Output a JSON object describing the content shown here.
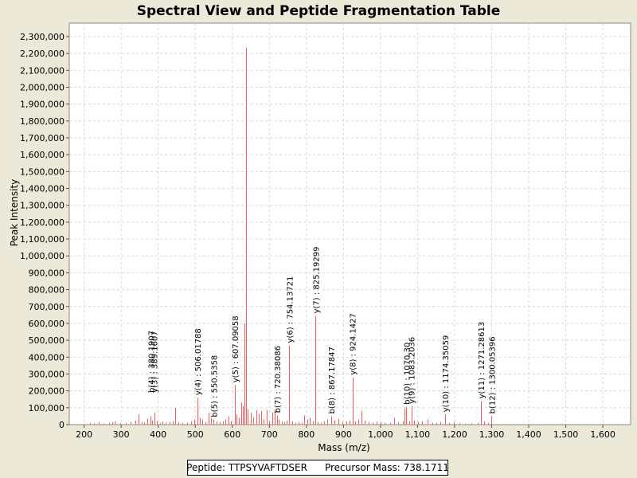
{
  "colors": {
    "background": "#ece9d8",
    "plot_background": "#ffffff",
    "peak": "#ff5a5a",
    "grid": "#d8d8d8"
  },
  "chart_data": {
    "type": "bar",
    "title": "Spectral View and Peptide Fragmentation Table",
    "xlabel": "Mass (m/z)",
    "ylabel": "Peak Intensity",
    "xlim": [
      160,
      1675
    ],
    "ylim": [
      0,
      2380000
    ],
    "x_ticks": [
      200,
      300,
      400,
      500,
      600,
      700,
      800,
      900,
      1000,
      1100,
      1200,
      1300,
      1400,
      1500,
      1600
    ],
    "x_tick_labels": [
      "200",
      "300",
      "400",
      "500",
      "600",
      "700",
      "800",
      "900",
      "1,000",
      "1,100",
      "1,200",
      "1,300",
      "1,400",
      "1,500",
      "1,600"
    ],
    "y_ticks": [
      0,
      100000,
      200000,
      300000,
      400000,
      500000,
      600000,
      700000,
      800000,
      900000,
      1000000,
      1100000,
      1200000,
      1300000,
      1400000,
      1500000,
      1600000,
      1700000,
      1800000,
      1900000,
      2000000,
      2100000,
      2200000,
      2300000
    ],
    "y_tick_labels": [
      "0",
      "100,000",
      "200,000",
      "300,000",
      "400,000",
      "500,000",
      "600,000",
      "700,000",
      "800,000",
      "900,000",
      "1,000,000",
      "1,100,000",
      "1,200,000",
      "1,300,000",
      "1,400,000",
      "1,500,000",
      "1,600,000",
      "1,700,000",
      "1,800,000",
      "1,900,000",
      "2,000,000",
      "2,100,000",
      "2,200,000",
      "2,300,000"
    ],
    "grid": true,
    "annotations": [
      {
        "mz": 380.0,
        "intensity": 175000,
        "label": "b(4) : 380.1907"
      },
      {
        "mz": 389.0,
        "intensity": 175000,
        "label": "y(3) : 389.1607"
      },
      {
        "mz": 506.0,
        "intensity": 160000,
        "label": "y(4) : 506.01788"
      },
      {
        "mz": 550.5,
        "intensity": 30000,
        "label": "b(5) : 550.5358"
      },
      {
        "mz": 607.1,
        "intensity": 235000,
        "label": "y(5) : 607.09058"
      },
      {
        "mz": 720.4,
        "intensity": 55000,
        "label": "b(7) : 720.38086"
      },
      {
        "mz": 754.1,
        "intensity": 470000,
        "label": "y(6) : 754.13721"
      },
      {
        "mz": 825.2,
        "intensity": 645000,
        "label": "y(7) : 825.19299"
      },
      {
        "mz": 867.2,
        "intensity": 50000,
        "label": "b(8) : 867.17847"
      },
      {
        "mz": 924.1,
        "intensity": 280000,
        "label": "y(8) : 924.1427"
      },
      {
        "mz": 1070.3,
        "intensity": 105000,
        "label": "b(10) : 1070.30"
      },
      {
        "mz": 1083.2,
        "intensity": 110000,
        "label": "y(9) : 1083.2036"
      },
      {
        "mz": 1174.4,
        "intensity": 60000,
        "label": "y(10) : 1174.35059"
      },
      {
        "mz": 1271.3,
        "intensity": 140000,
        "label": "y(11) : 1271.28613"
      },
      {
        "mz": 1300.1,
        "intensity": 50000,
        "label": "b(12) : 1300.05396"
      }
    ],
    "peaks": [
      {
        "mz": 216,
        "intensity": 12000
      },
      {
        "mz": 226,
        "intensity": 8000
      },
      {
        "mz": 240,
        "intensity": 15000
      },
      {
        "mz": 252,
        "intensity": 7000
      },
      {
        "mz": 268,
        "intensity": 10000
      },
      {
        "mz": 276,
        "intensity": 14000
      },
      {
        "mz": 283,
        "intensity": 20000
      },
      {
        "mz": 298,
        "intensity": 9000
      },
      {
        "mz": 312,
        "intensity": 11000
      },
      {
        "mz": 325,
        "intensity": 18000
      },
      {
        "mz": 338,
        "intensity": 25000
      },
      {
        "mz": 347,
        "intensity": 60000
      },
      {
        "mz": 356,
        "intensity": 15000
      },
      {
        "mz": 363,
        "intensity": 12000
      },
      {
        "mz": 371,
        "intensity": 35000
      },
      {
        "mz": 380,
        "intensity": 50000
      },
      {
        "mz": 384,
        "intensity": 25000
      },
      {
        "mz": 389,
        "intensity": 70000
      },
      {
        "mz": 397,
        "intensity": 20000
      },
      {
        "mz": 404,
        "intensity": 10000
      },
      {
        "mz": 412,
        "intensity": 18000
      },
      {
        "mz": 420,
        "intensity": 12000
      },
      {
        "mz": 431,
        "intensity": 15000
      },
      {
        "mz": 440,
        "intensity": 22000
      },
      {
        "mz": 446,
        "intensity": 100000
      },
      {
        "mz": 455,
        "intensity": 14000
      },
      {
        "mz": 466,
        "intensity": 9000
      },
      {
        "mz": 479,
        "intensity": 12000
      },
      {
        "mz": 489,
        "intensity": 20000
      },
      {
        "mz": 497,
        "intensity": 30000
      },
      {
        "mz": 506,
        "intensity": 160000
      },
      {
        "mz": 512,
        "intensity": 40000
      },
      {
        "mz": 518,
        "intensity": 30000
      },
      {
        "mz": 527,
        "intensity": 15000
      },
      {
        "mz": 535,
        "intensity": 70000
      },
      {
        "mz": 542,
        "intensity": 40000
      },
      {
        "mz": 550,
        "intensity": 30000
      },
      {
        "mz": 558,
        "intensity": 20000
      },
      {
        "mz": 566,
        "intensity": 15000
      },
      {
        "mz": 574,
        "intensity": 20000
      },
      {
        "mz": 582,
        "intensity": 30000
      },
      {
        "mz": 589,
        "intensity": 50000
      },
      {
        "mz": 596,
        "intensity": 20000
      },
      {
        "mz": 607,
        "intensity": 235000
      },
      {
        "mz": 612,
        "intensity": 60000
      },
      {
        "mz": 618,
        "intensity": 40000
      },
      {
        "mz": 624,
        "intensity": 130000
      },
      {
        "mz": 628,
        "intensity": 110000
      },
      {
        "mz": 632,
        "intensity": 600000
      },
      {
        "mz": 636,
        "intensity": 2235000
      },
      {
        "mz": 642,
        "intensity": 90000
      },
      {
        "mz": 650,
        "intensity": 70000
      },
      {
        "mz": 657,
        "intensity": 45000
      },
      {
        "mz": 664,
        "intensity": 85000
      },
      {
        "mz": 671,
        "intensity": 60000
      },
      {
        "mz": 678,
        "intensity": 80000
      },
      {
        "mz": 685,
        "intensity": 30000
      },
      {
        "mz": 692,
        "intensity": 85000
      },
      {
        "mz": 700,
        "intensity": 20000
      },
      {
        "mz": 707,
        "intensity": 70000
      },
      {
        "mz": 714,
        "intensity": 90000
      },
      {
        "mz": 720,
        "intensity": 55000
      },
      {
        "mz": 726,
        "intensity": 30000
      },
      {
        "mz": 733,
        "intensity": 20000
      },
      {
        "mz": 741,
        "intensity": 15000
      },
      {
        "mz": 747,
        "intensity": 25000
      },
      {
        "mz": 754,
        "intensity": 470000
      },
      {
        "mz": 762,
        "intensity": 20000
      },
      {
        "mz": 770,
        "intensity": 10000
      },
      {
        "mz": 778,
        "intensity": 15000
      },
      {
        "mz": 787,
        "intensity": 12000
      },
      {
        "mz": 795,
        "intensity": 55000
      },
      {
        "mz": 802,
        "intensity": 30000
      },
      {
        "mz": 810,
        "intensity": 40000
      },
      {
        "mz": 817,
        "intensity": 20000
      },
      {
        "mz": 825,
        "intensity": 645000
      },
      {
        "mz": 831,
        "intensity": 15000
      },
      {
        "mz": 840,
        "intensity": 10000
      },
      {
        "mz": 848,
        "intensity": 20000
      },
      {
        "mz": 856,
        "intensity": 30000
      },
      {
        "mz": 867,
        "intensity": 50000
      },
      {
        "mz": 876,
        "intensity": 25000
      },
      {
        "mz": 886,
        "intensity": 35000
      },
      {
        "mz": 897,
        "intensity": 15000
      },
      {
        "mz": 908,
        "intensity": 20000
      },
      {
        "mz": 916,
        "intensity": 25000
      },
      {
        "mz": 924,
        "intensity": 280000
      },
      {
        "mz": 932,
        "intensity": 20000
      },
      {
        "mz": 941,
        "intensity": 30000
      },
      {
        "mz": 949,
        "intensity": 80000
      },
      {
        "mz": 958,
        "intensity": 25000
      },
      {
        "mz": 968,
        "intensity": 15000
      },
      {
        "mz": 978,
        "intensity": 12000
      },
      {
        "mz": 989,
        "intensity": 18000
      },
      {
        "mz": 1001,
        "intensity": 15000
      },
      {
        "mz": 1012,
        "intensity": 10000
      },
      {
        "mz": 1025,
        "intensity": 12000
      },
      {
        "mz": 1037,
        "intensity": 40000
      },
      {
        "mz": 1047,
        "intensity": 15000
      },
      {
        "mz": 1060,
        "intensity": 20000
      },
      {
        "mz": 1065,
        "intensity": 95000
      },
      {
        "mz": 1070,
        "intensity": 105000
      },
      {
        "mz": 1078,
        "intensity": 20000
      },
      {
        "mz": 1083,
        "intensity": 110000
      },
      {
        "mz": 1090,
        "intensity": 25000
      },
      {
        "mz": 1101,
        "intensity": 15000
      },
      {
        "mz": 1113,
        "intensity": 20000
      },
      {
        "mz": 1127,
        "intensity": 30000
      },
      {
        "mz": 1139,
        "intensity": 12000
      },
      {
        "mz": 1150,
        "intensity": 10000
      },
      {
        "mz": 1162,
        "intensity": 15000
      },
      {
        "mz": 1174,
        "intensity": 60000
      },
      {
        "mz": 1186,
        "intensity": 10000
      },
      {
        "mz": 1197,
        "intensity": 15000
      },
      {
        "mz": 1212,
        "intensity": 8000
      },
      {
        "mz": 1228,
        "intensity": 6000
      },
      {
        "mz": 1245,
        "intensity": 8000
      },
      {
        "mz": 1262,
        "intensity": 10000
      },
      {
        "mz": 1271,
        "intensity": 140000
      },
      {
        "mz": 1280,
        "intensity": 20000
      },
      {
        "mz": 1291,
        "intensity": 10000
      },
      {
        "mz": 1300,
        "intensity": 50000
      }
    ]
  },
  "legend": {
    "peptide": "Peptide: TTPSYVAFTDSER",
    "precursor": "Precursor Mass: 738.1711"
  }
}
